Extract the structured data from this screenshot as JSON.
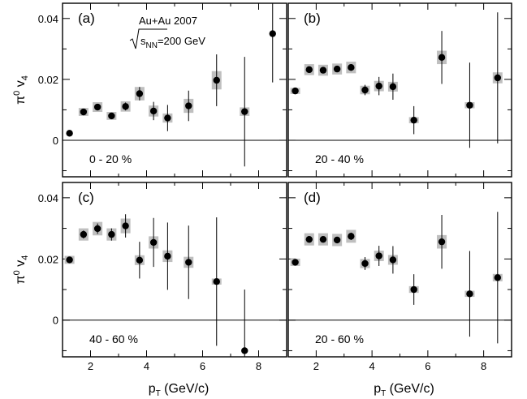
{
  "chart_data": {
    "type": "scatter",
    "ylabel": {
      "base": "π",
      "sup": "0",
      "main": " v",
      "sub": "4"
    },
    "xlabel": {
      "main": "p",
      "sub": "T",
      "rest": " (GeV/c)"
    },
    "xlim": [
      1.0,
      9.0
    ],
    "ylim": [
      -0.012,
      0.045
    ],
    "x_ticks": [
      2,
      4,
      6,
      8
    ],
    "y_ticks": [
      0,
      0.02,
      0.04
    ],
    "y_tick_labels": [
      "0",
      "0.02",
      "0.04"
    ],
    "system_label": "Au+Au 2007",
    "energy_label": {
      "s": "s",
      "sub": "NN",
      "rest": "=200 GeV"
    },
    "panels": [
      {
        "id": "a",
        "label": "(a)",
        "centrality": "0 - 20 %",
        "points": [
          {
            "x": 1.25,
            "y": 0.0023,
            "err": 0.0004,
            "sys": 0.0
          },
          {
            "x": 1.75,
            "y": 0.0093,
            "err": 0.0008,
            "sys": 0.0013
          },
          {
            "x": 2.25,
            "y": 0.0109,
            "err": 0.0009,
            "sys": 0.0016
          },
          {
            "x": 2.75,
            "y": 0.008,
            "err": 0.001,
            "sys": 0.0013
          },
          {
            "x": 3.25,
            "y": 0.0111,
            "err": 0.0013,
            "sys": 0.0017
          },
          {
            "x": 3.75,
            "y": 0.0153,
            "err": 0.0022,
            "sys": 0.0022
          },
          {
            "x": 4.25,
            "y": 0.0096,
            "err": 0.003,
            "sys": 0.0018
          },
          {
            "x": 4.75,
            "y": 0.0073,
            "err": 0.0043,
            "sys": 0.0015
          },
          {
            "x": 5.5,
            "y": 0.0113,
            "err": 0.005,
            "sys": 0.0023
          },
          {
            "x": 6.5,
            "y": 0.0197,
            "err": 0.0085,
            "sys": 0.003
          },
          {
            "x": 7.5,
            "y": 0.0094,
            "err": 0.018,
            "sys": 0.0014
          },
          {
            "x": 8.5,
            "y": 0.035,
            "err": 0.016,
            "sys": 0.0
          }
        ]
      },
      {
        "id": "b",
        "label": "(b)",
        "centrality": "20 - 40 %",
        "points": [
          {
            "x": 1.25,
            "y": 0.0162,
            "err": 0.0004,
            "sys": 0.001
          },
          {
            "x": 1.75,
            "y": 0.0232,
            "err": 0.0006,
            "sys": 0.0018
          },
          {
            "x": 2.25,
            "y": 0.023,
            "err": 0.0007,
            "sys": 0.0018
          },
          {
            "x": 2.75,
            "y": 0.0234,
            "err": 0.0008,
            "sys": 0.0018
          },
          {
            "x": 3.25,
            "y": 0.0239,
            "err": 0.0011,
            "sys": 0.0019
          },
          {
            "x": 3.75,
            "y": 0.0165,
            "err": 0.0017,
            "sys": 0.0014
          },
          {
            "x": 4.25,
            "y": 0.0178,
            "err": 0.003,
            "sys": 0.0017
          },
          {
            "x": 4.75,
            "y": 0.0176,
            "err": 0.0043,
            "sys": 0.0016
          },
          {
            "x": 5.5,
            "y": 0.0066,
            "err": 0.0046,
            "sys": 0.001
          },
          {
            "x": 6.5,
            "y": 0.0272,
            "err": 0.0087,
            "sys": 0.0022
          },
          {
            "x": 7.5,
            "y": 0.0115,
            "err": 0.014,
            "sys": 0.001
          },
          {
            "x": 8.5,
            "y": 0.0205,
            "err": 0.0215,
            "sys": 0.0018
          }
        ]
      },
      {
        "id": "c",
        "label": "(c)",
        "centrality": "40 - 60 %",
        "points": [
          {
            "x": 1.25,
            "y": 0.0197,
            "err": 0.0007,
            "sys": 0.0013
          },
          {
            "x": 1.75,
            "y": 0.028,
            "err": 0.0013,
            "sys": 0.002
          },
          {
            "x": 2.25,
            "y": 0.0299,
            "err": 0.0017,
            "sys": 0.0022
          },
          {
            "x": 2.75,
            "y": 0.028,
            "err": 0.002,
            "sys": 0.002
          },
          {
            "x": 3.25,
            "y": 0.0308,
            "err": 0.0038,
            "sys": 0.0024
          },
          {
            "x": 3.75,
            "y": 0.0196,
            "err": 0.006,
            "sys": 0.0016
          },
          {
            "x": 4.25,
            "y": 0.0254,
            "err": 0.008,
            "sys": 0.002
          },
          {
            "x": 4.75,
            "y": 0.0209,
            "err": 0.011,
            "sys": 0.0019
          },
          {
            "x": 5.5,
            "y": 0.0189,
            "err": 0.012,
            "sys": 0.0018
          },
          {
            "x": 6.5,
            "y": 0.0126,
            "err": 0.021,
            "sys": 0.001
          },
          {
            "x": 7.5,
            "y": -0.01,
            "err": 0.02,
            "sys": 0.0
          }
        ]
      },
      {
        "id": "d",
        "label": "(d)",
        "centrality": "20 - 60 %",
        "points": [
          {
            "x": 1.25,
            "y": 0.0189,
            "err": 0.0004,
            "sys": 0.0012
          },
          {
            "x": 1.75,
            "y": 0.0264,
            "err": 0.0006,
            "sys": 0.002
          },
          {
            "x": 2.25,
            "y": 0.0264,
            "err": 0.0007,
            "sys": 0.002
          },
          {
            "x": 2.75,
            "y": 0.0262,
            "err": 0.0009,
            "sys": 0.002
          },
          {
            "x": 3.25,
            "y": 0.0274,
            "err": 0.0012,
            "sys": 0.0021
          },
          {
            "x": 3.75,
            "y": 0.0185,
            "err": 0.0021,
            "sys": 0.0015
          },
          {
            "x": 4.25,
            "y": 0.021,
            "err": 0.0033,
            "sys": 0.0017
          },
          {
            "x": 4.75,
            "y": 0.0197,
            "err": 0.0045,
            "sys": 0.0016
          },
          {
            "x": 5.5,
            "y": 0.01,
            "err": 0.005,
            "sys": 0.0011
          },
          {
            "x": 6.5,
            "y": 0.0256,
            "err": 0.0088,
            "sys": 0.0022
          },
          {
            "x": 7.5,
            "y": 0.0086,
            "err": 0.014,
            "sys": 0.001
          },
          {
            "x": 8.5,
            "y": 0.0139,
            "err": 0.0215,
            "sys": 0.0012
          }
        ]
      }
    ]
  }
}
